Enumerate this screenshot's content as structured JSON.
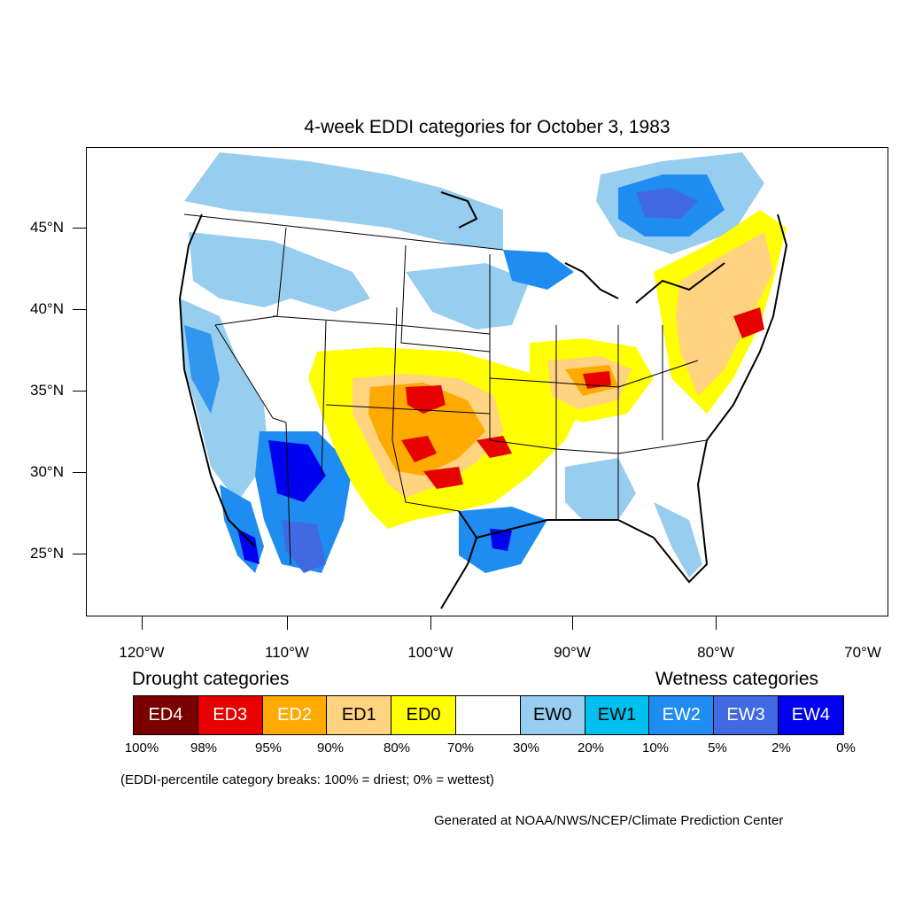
{
  "title": "4-week EDDI categories for October 3, 1983",
  "lat_labels": [
    "45°N",
    "40°N",
    "35°N",
    "30°N",
    "25°N"
  ],
  "lon_labels": [
    "120°W",
    "110°W",
    "100°W",
    "90°W",
    "80°W",
    "70°W"
  ],
  "legend": {
    "drought_heading": "Drought categories",
    "wetness_heading": "Wetness categories",
    "categories": [
      {
        "label": "ED4",
        "color": "#7a0000",
        "text_color": "#ffffff"
      },
      {
        "label": "ED3",
        "color": "#e60000",
        "text_color": "#ffffff"
      },
      {
        "label": "ED2",
        "color": "#ffaa00",
        "text_color": "#ffffff"
      },
      {
        "label": "ED1",
        "color": "#ffd37f",
        "text_color": "#000000"
      },
      {
        "label": "ED0",
        "color": "#ffff00",
        "text_color": "#000000"
      },
      {
        "label": "",
        "color": "#ffffff",
        "text_color": "#000000"
      },
      {
        "label": "EW0",
        "color": "#97cdef",
        "text_color": "#000000"
      },
      {
        "label": "EW1",
        "color": "#00c0f0",
        "text_color": "#000000"
      },
      {
        "label": "EW2",
        "color": "#1e8cf0",
        "text_color": "#ffffff"
      },
      {
        "label": "EW3",
        "color": "#4169e1",
        "text_color": "#ffffff"
      },
      {
        "label": "EW4",
        "color": "#0000f0",
        "text_color": "#ffffff"
      }
    ],
    "breaks": [
      "100%",
      "98%",
      "95%",
      "90%",
      "80%",
      "70%",
      "30%",
      "20%",
      "10%",
      "5%",
      "2%",
      "0%"
    ],
    "note": "(EDDI-percentile category breaks: 100% = driest; 0% = wettest)"
  },
  "credit": "Generated at NOAA/NWS/NCEP/Climate Prediction Center"
}
